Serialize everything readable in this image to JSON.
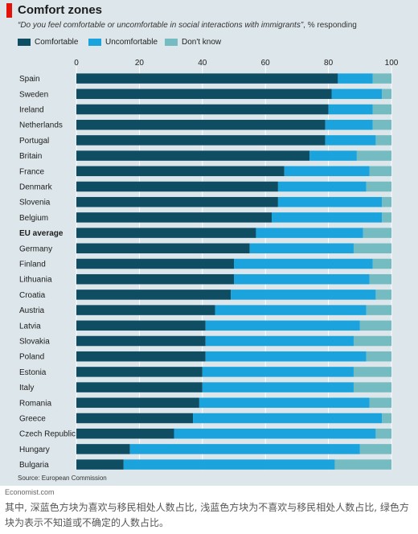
{
  "title": "Comfort zones",
  "subtitle_question": "“Do you feel comfortable or uncomfortable in social interactions with immigrants”",
  "subtitle_suffix": ", % responding",
  "source": "Source: European Commission",
  "brand": "Economist.com",
  "caption": "其中, 深蓝色方块为喜欢与移民相处人数占比, 浅蓝色方块为不喜欢与移民相处人数占比, 绿色方块为表示不知道或不确定的人数占比。",
  "colors": {
    "comfortable": "#0f4d63",
    "uncomfortable": "#1aa3dc",
    "dont_know": "#74bcc2",
    "background": "#dde6ea",
    "accent": "#e3120b"
  },
  "chart_data": {
    "type": "bar",
    "orientation": "horizontal",
    "stacked": true,
    "xlim": [
      0,
      100
    ],
    "xticks": [
      0,
      20,
      40,
      60,
      80,
      100
    ],
    "grid": true,
    "legend_position": "top-left",
    "categories": [
      "Spain",
      "Sweden",
      "Ireland",
      "Netherlands",
      "Portugal",
      "Britain",
      "France",
      "Denmark",
      "Slovenia",
      "Belgium",
      "EU average",
      "Germany",
      "Finland",
      "Lithuania",
      "Croatia",
      "Austria",
      "Latvia",
      "Slovakia",
      "Poland",
      "Estonia",
      "Italy",
      "Romania",
      "Greece",
      "Czech Republic",
      "Hungary",
      "Bulgaria"
    ],
    "highlight_category": "EU average",
    "series": [
      {
        "name": "Comfortable",
        "color": "#0f4d63",
        "values": [
          83,
          81,
          80,
          79,
          79,
          74,
          66,
          64,
          64,
          62,
          57,
          55,
          50,
          50,
          49,
          44,
          41,
          41,
          41,
          40,
          40,
          39,
          37,
          31,
          17,
          15
        ]
      },
      {
        "name": "Uncomfortable",
        "color": "#1aa3dc",
        "values": [
          11,
          16,
          14,
          15,
          16,
          15,
          27,
          28,
          33,
          35,
          34,
          33,
          44,
          43,
          46,
          48,
          49,
          47,
          51,
          48,
          48,
          54,
          60,
          64,
          73,
          67
        ]
      },
      {
        "name": "Don't know",
        "color": "#74bcc2",
        "values": [
          6,
          3,
          6,
          6,
          5,
          11,
          7,
          8,
          3,
          3,
          9,
          12,
          6,
          7,
          5,
          8,
          10,
          12,
          8,
          12,
          12,
          7,
          3,
          5,
          10,
          18
        ]
      }
    ]
  }
}
